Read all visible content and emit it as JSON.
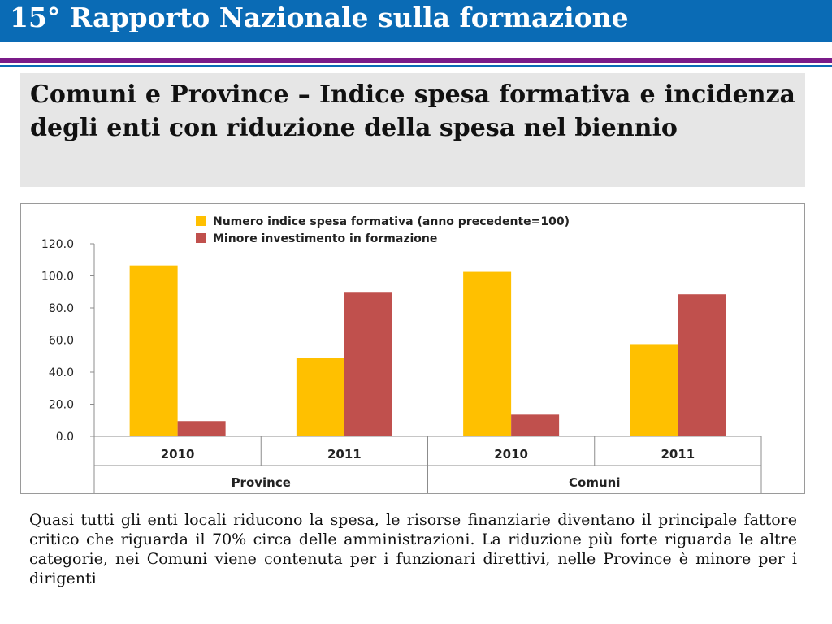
{
  "header": {
    "title": "15° Rapporto Nazionale sulla formazione"
  },
  "subtitle": "Comuni e Province – Indice spesa formativa e incidenza degli enti con riduzione della spesa nel biennio",
  "caption": "Quasi tutti gli enti locali riducono la spesa, le risorse finanziarie diventano il principale fattore critico che riguarda il 70% circa delle amministrazioni. La riduzione più forte riguarda le altre categorie, nei Comuni viene contenuta per i funzionari direttivi, nelle Province è minore per i dirigenti",
  "chart_data": {
    "type": "bar",
    "categories": [
      "2010",
      "2011",
      "2010",
      "2011"
    ],
    "groups": [
      "Province",
      "Comuni"
    ],
    "series": [
      {
        "name": "Numero indice spesa formativa (anno precedente=100)",
        "color": "#ffc000",
        "values": [
          106.5,
          49.0,
          102.5,
          57.5
        ]
      },
      {
        "name": "Minore investimento in formazione",
        "color": "#c0504d",
        "values": [
          9.5,
          90.0,
          13.5,
          88.5
        ]
      }
    ],
    "ylim": [
      0,
      120
    ],
    "yticks": [
      "0.0",
      "20.0",
      "40.0",
      "60.0",
      "80.0",
      "100.0",
      "120.0"
    ],
    "legend": "top",
    "grid": false
  }
}
